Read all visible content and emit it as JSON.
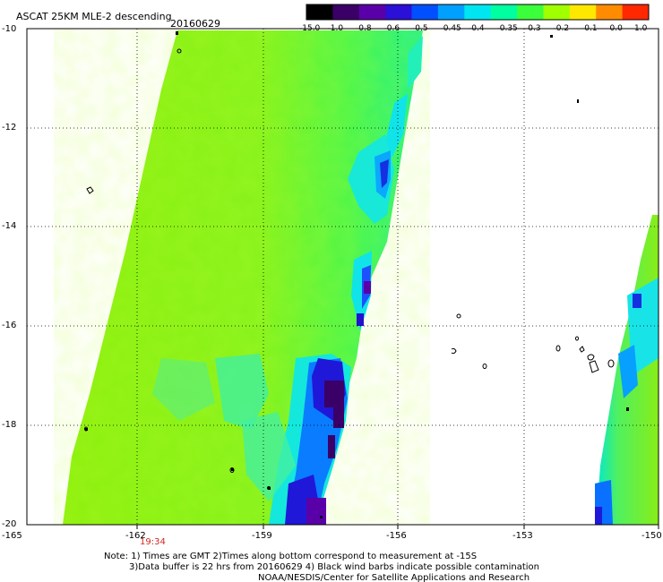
{
  "header": {
    "title": "ASCAT 25KM MLE-2 descending",
    "date": "20160629"
  },
  "colorbar": {
    "labels": [
      "-15.0",
      "-1.0",
      "-0.8",
      "-0.6",
      "-0.5",
      "-0.45",
      "-0.4",
      "-0.35",
      "-0.3",
      "-0.2",
      "-0.1",
      "0.0",
      "1.0"
    ],
    "colors": [
      "#000000",
      "#3a0067",
      "#5a00a8",
      "#2b10d8",
      "#0050ff",
      "#00a0ff",
      "#00e6f0",
      "#00ffa0",
      "#3cff3c",
      "#a0ff00",
      "#ffe800",
      "#ff8c00",
      "#ff2800"
    ]
  },
  "map": {
    "lat_labels": [
      "-10",
      "-12",
      "-14",
      "-16",
      "-18",
      "-20"
    ],
    "lon_labels": [
      "-165",
      "-162",
      "-159",
      "-156",
      "-153",
      "-150"
    ],
    "lat_range": [
      -20,
      -10
    ],
    "lon_range": [
      -165,
      -150
    ],
    "grid": "dotted",
    "pass_time": "19:34"
  },
  "notes": {
    "line1": "Note: 1) Times are GMT 2)Times along bottom correspond to measurement at -15S",
    "line2": "3)Data buffer is 22 hrs from 20160629 4) Black wind barbs indicate possible contamination",
    "line3": "NOAA/NESDIS/Center for Satellite Applications and Research"
  }
}
